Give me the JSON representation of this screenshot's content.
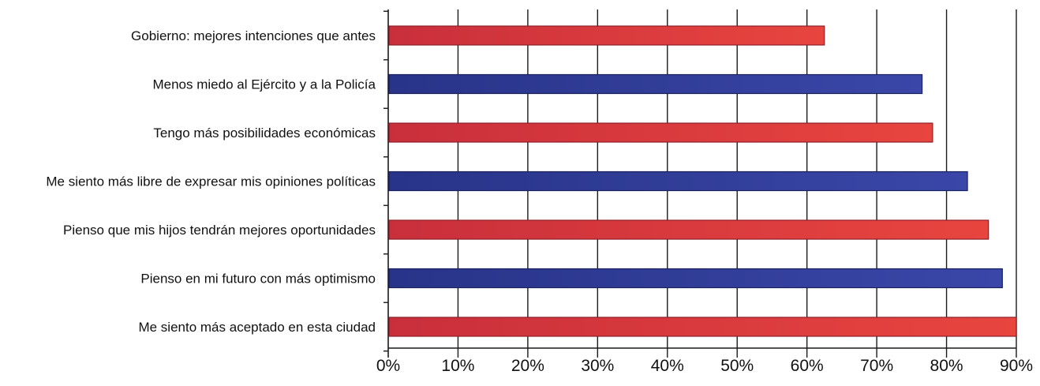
{
  "chart_data": {
    "type": "bar",
    "orientation": "horizontal",
    "categories": [
      "Gobierno: mejores intenciones que antes",
      "Menos miedo al Ejército y a la Policía",
      "Tengo más posibilidades económicas",
      "Me siento más libre de expresar mis opiniones políticas",
      "Pienso que mis hijos tendrán mejores oportunidades",
      "Pienso en mi futuro con más optimismo",
      "Me siento más aceptado en esta ciudad"
    ],
    "values": [
      62.5,
      76.5,
      78,
      83,
      86,
      88,
      90
    ],
    "bar_colors": [
      "#d8333f",
      "#2e3a96",
      "#d8333f",
      "#2e3a96",
      "#d8333f",
      "#2e3a96",
      "#d8333f"
    ],
    "xlim": [
      0,
      90
    ],
    "xticks": [
      "0%",
      "10%",
      "20%",
      "30%",
      "40%",
      "50%",
      "60%",
      "70%",
      "80%",
      "90%"
    ],
    "grid": "vertical",
    "legend": "none",
    "title": "",
    "xlabel": "",
    "ylabel": ""
  }
}
